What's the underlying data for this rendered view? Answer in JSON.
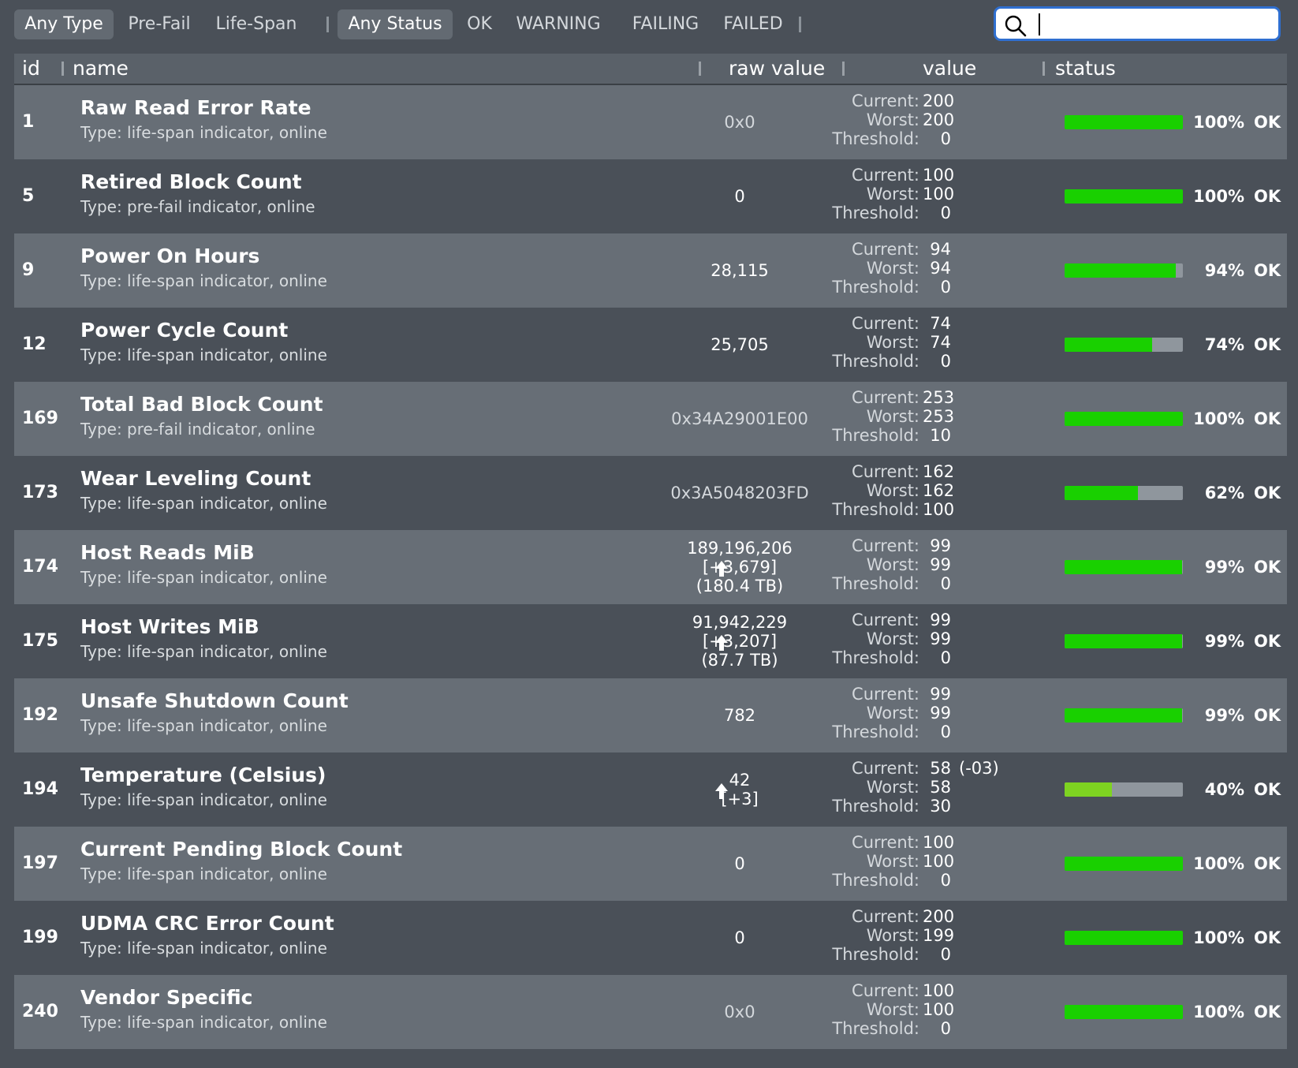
{
  "filters": {
    "type": [
      "Any Type",
      "Pre-Fail",
      "Life-Span"
    ],
    "status": [
      "Any Status",
      "OK",
      "WARNING",
      "FAILING",
      "FAILED"
    ],
    "separator": "|"
  },
  "search": {
    "value": "",
    "placeholder": ""
  },
  "columns": {
    "id": "id",
    "name": "name",
    "raw": "raw value",
    "value": "value",
    "status": "status"
  },
  "labels": {
    "current": "Current:",
    "worst": "Worst:",
    "threshold": "Threshold:"
  },
  "colors": {
    "bar_green": "#19d000",
    "bar_yellowgreen": "#7ed321",
    "bar_track": "#8f969d"
  },
  "rows": [
    {
      "id": "1",
      "name": "Raw Read Error Rate",
      "type": "Type: life-span indicator, online",
      "raw": [
        "0x0"
      ],
      "raw_muted": true,
      "trend_up": false,
      "current": "200",
      "worst": "200",
      "threshold": "0",
      "extra": "",
      "percent": 100,
      "percent_label": "100%",
      "status": "OK"
    },
    {
      "id": "5",
      "name": "Retired Block Count",
      "type": "Type: pre-fail indicator, online",
      "raw": [
        "0"
      ],
      "raw_muted": false,
      "trend_up": false,
      "current": "100",
      "worst": "100",
      "threshold": "0",
      "extra": "",
      "percent": 100,
      "percent_label": "100%",
      "status": "OK"
    },
    {
      "id": "9",
      "name": "Power On Hours",
      "type": "Type: life-span indicator, online",
      "raw": [
        "28,115"
      ],
      "raw_muted": false,
      "trend_up": false,
      "current": "94",
      "worst": "94",
      "threshold": "0",
      "extra": "",
      "percent": 94,
      "percent_label": "94%",
      "status": "OK"
    },
    {
      "id": "12",
      "name": "Power Cycle Count",
      "type": "Type: life-span indicator, online",
      "raw": [
        "25,705"
      ],
      "raw_muted": false,
      "trend_up": false,
      "current": "74",
      "worst": "74",
      "threshold": "0",
      "extra": "",
      "percent": 74,
      "percent_label": "74%",
      "status": "OK"
    },
    {
      "id": "169",
      "name": "Total Bad Block Count",
      "type": "Type: pre-fail indicator, online",
      "raw": [
        "0x34A29001E00"
      ],
      "raw_muted": true,
      "trend_up": false,
      "current": "253",
      "worst": "253",
      "threshold": "10",
      "extra": "",
      "percent": 100,
      "percent_label": "100%",
      "status": "OK"
    },
    {
      "id": "173",
      "name": "Wear Leveling Count",
      "type": "Type: life-span indicator, online",
      "raw": [
        "0x3A5048203FD"
      ],
      "raw_muted": true,
      "trend_up": false,
      "current": "162",
      "worst": "162",
      "threshold": "100",
      "extra": "",
      "percent": 62,
      "percent_label": "62%",
      "status": "OK"
    },
    {
      "id": "174",
      "name": "Host Reads MiB",
      "type": "Type: life-span indicator, online",
      "raw": [
        "189,196,206",
        "[+3,679]",
        "(180.4 TB)"
      ],
      "raw_muted": false,
      "trend_up": true,
      "current": "99",
      "worst": "99",
      "threshold": "0",
      "extra": "",
      "percent": 99,
      "percent_label": "99%",
      "status": "OK"
    },
    {
      "id": "175",
      "name": "Host Writes MiB",
      "type": "Type: life-span indicator, online",
      "raw": [
        "91,942,229",
        "[+3,207]",
        "(87.7 TB)"
      ],
      "raw_muted": false,
      "trend_up": true,
      "current": "99",
      "worst": "99",
      "threshold": "0",
      "extra": "",
      "percent": 99,
      "percent_label": "99%",
      "status": "OK"
    },
    {
      "id": "192",
      "name": "Unsafe Shutdown Count",
      "type": "Type: life-span indicator, online",
      "raw": [
        "782"
      ],
      "raw_muted": false,
      "trend_up": false,
      "current": "99",
      "worst": "99",
      "threshold": "0",
      "extra": "",
      "percent": 99,
      "percent_label": "99%",
      "status": "OK"
    },
    {
      "id": "194",
      "name": "Temperature (Celsius)",
      "type": "Type: life-span indicator, online",
      "raw": [
        "42",
        "[+3]"
      ],
      "raw_muted": false,
      "trend_up": true,
      "current": "58",
      "worst": "58",
      "threshold": "30",
      "extra": "(-03)",
      "percent": 40,
      "percent_label": "40%",
      "status": "OK"
    },
    {
      "id": "197",
      "name": "Current Pending Block Count",
      "type": "Type: life-span indicator, online",
      "raw": [
        "0"
      ],
      "raw_muted": false,
      "trend_up": false,
      "current": "100",
      "worst": "100",
      "threshold": "0",
      "extra": "",
      "percent": 100,
      "percent_label": "100%",
      "status": "OK"
    },
    {
      "id": "199",
      "name": "UDMA CRC Error Count",
      "type": "Type: life-span indicator, online",
      "raw": [
        "0"
      ],
      "raw_muted": false,
      "trend_up": false,
      "current": "200",
      "worst": "199",
      "threshold": "0",
      "extra": "",
      "percent": 100,
      "percent_label": "100%",
      "status": "OK"
    },
    {
      "id": "240",
      "name": "Vendor Specific",
      "type": "Type: life-span indicator, online",
      "raw": [
        "0x0"
      ],
      "raw_muted": true,
      "trend_up": false,
      "current": "100",
      "worst": "100",
      "threshold": "0",
      "extra": "",
      "percent": 100,
      "percent_label": "100%",
      "status": "OK"
    }
  ]
}
